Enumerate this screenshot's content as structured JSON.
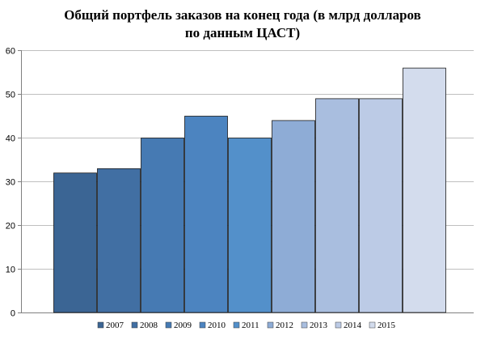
{
  "chart_data": {
    "type": "bar",
    "title_line1": "Общий портфель заказов на конец года (в млрд долларов",
    "title_line2": "по данным ЦАСТ)",
    "xlabel": "",
    "ylabel": "",
    "ylim": [
      0,
      60
    ],
    "yticks": [
      0,
      10,
      20,
      30,
      40,
      50,
      60
    ],
    "grid": true,
    "legend_position": "bottom",
    "series": [
      {
        "name": "2007",
        "value": 32,
        "color": "#3b6594"
      },
      {
        "name": "2008",
        "value": 33,
        "color": "#416fa3"
      },
      {
        "name": "2009",
        "value": 40,
        "color": "#467ab3"
      },
      {
        "name": "2010",
        "value": 45,
        "color": "#4c84c0"
      },
      {
        "name": "2011",
        "value": 40,
        "color": "#5390ca"
      },
      {
        "name": "2012",
        "value": 44,
        "color": "#8eacd6"
      },
      {
        "name": "2013",
        "value": 49,
        "color": "#a9bedf"
      },
      {
        "name": "2014",
        "value": 49,
        "color": "#bccbe6"
      },
      {
        "name": "2015",
        "value": 56,
        "color": "#d3dced"
      }
    ]
  }
}
